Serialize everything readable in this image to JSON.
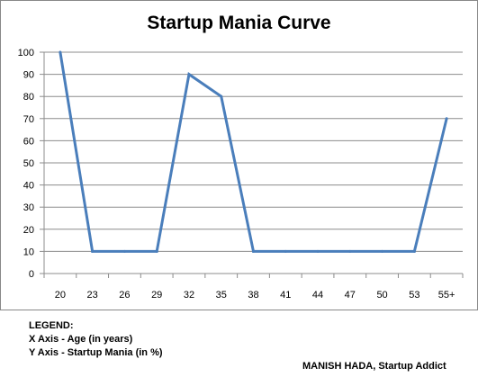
{
  "chart_data": {
    "type": "line",
    "title": "Startup Mania Curve",
    "xlabel": "",
    "ylabel": "",
    "categories": [
      "20",
      "23",
      "26",
      "29",
      "32",
      "35",
      "38",
      "41",
      "44",
      "47",
      "50",
      "53",
      "55+"
    ],
    "series": [
      {
        "values": [
          100,
          10,
          10,
          10,
          90,
          80,
          10,
          10,
          10,
          10,
          10,
          10,
          70
        ]
      }
    ],
    "ylim": [
      0,
      100
    ],
    "yticks": [
      0,
      10,
      20,
      30,
      40,
      50,
      60,
      70,
      80,
      90,
      100
    ],
    "grid": true,
    "colors": {
      "line": "#4a7ebb",
      "grid": "#8c8c8c",
      "axis": "#8c8c8c"
    }
  },
  "legend": {
    "heading": "LEGEND:",
    "x_axis": "X Axis - Age (in years)",
    "y_axis": "Y Axis - Startup Mania (in %)"
  },
  "credit": "MANISH HADA, Startup Addict"
}
